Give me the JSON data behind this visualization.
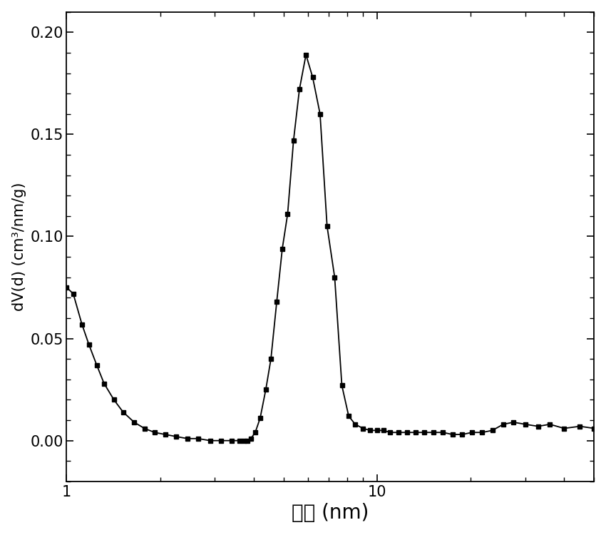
{
  "x": [
    1.0,
    1.05,
    1.12,
    1.18,
    1.25,
    1.32,
    1.42,
    1.52,
    1.65,
    1.78,
    1.92,
    2.08,
    2.25,
    2.45,
    2.65,
    2.9,
    3.15,
    3.4,
    3.6,
    3.72,
    3.82,
    3.92,
    4.05,
    4.2,
    4.38,
    4.55,
    4.75,
    4.95,
    5.15,
    5.38,
    5.62,
    5.9,
    6.2,
    6.55,
    6.9,
    7.3,
    7.7,
    8.1,
    8.5,
    9.0,
    9.5,
    10.0,
    10.5,
    11.0,
    11.7,
    12.5,
    13.3,
    14.2,
    15.2,
    16.3,
    17.5,
    18.8,
    20.2,
    21.8,
    23.5,
    25.5,
    27.5,
    30.0,
    33.0,
    36.0,
    40.0,
    45.0,
    50.0
  ],
  "y": [
    0.075,
    0.072,
    0.057,
    0.047,
    0.037,
    0.028,
    0.02,
    0.014,
    0.009,
    0.006,
    0.004,
    0.003,
    0.002,
    0.001,
    0.001,
    0.0,
    0.0,
    0.0,
    0.0,
    0.0,
    0.0,
    0.001,
    0.004,
    0.011,
    0.025,
    0.04,
    0.068,
    0.094,
    0.111,
    0.147,
    0.172,
    0.189,
    0.178,
    0.16,
    0.105,
    0.08,
    0.027,
    0.012,
    0.008,
    0.006,
    0.005,
    0.005,
    0.005,
    0.004,
    0.004,
    0.004,
    0.004,
    0.004,
    0.004,
    0.004,
    0.003,
    0.003,
    0.004,
    0.004,
    0.005,
    0.008,
    0.009,
    0.008,
    0.007,
    0.008,
    0.006,
    0.007,
    0.006
  ],
  "xlabel": "孔径 (nm)",
  "ylabel": "dV(d) (cm³/nm/g)",
  "xlim": [
    1,
    50
  ],
  "ylim": [
    -0.02,
    0.21
  ],
  "yticks": [
    0.0,
    0.05,
    0.1,
    0.15,
    0.2
  ],
  "xticks": [
    1,
    10
  ],
  "line_color": "#000000",
  "marker": "s",
  "marker_size": 5,
  "linewidth": 1.3,
  "background_color": "#ffffff",
  "xlabel_fontsize": 20,
  "ylabel_fontsize": 15,
  "tick_fontsize": 15
}
